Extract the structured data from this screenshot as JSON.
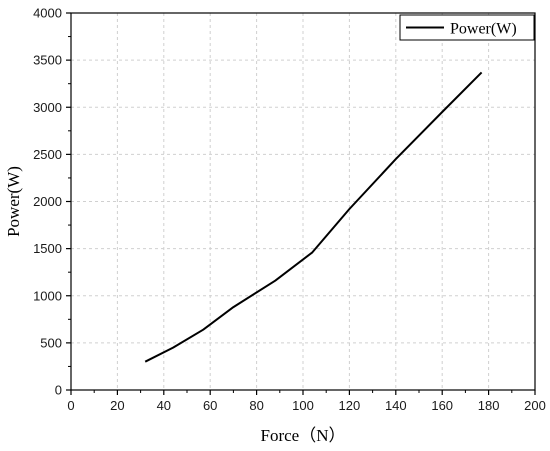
{
  "chart_data": {
    "type": "line",
    "title": "",
    "xlabel": "Force（N）",
    "ylabel": "Power(W)",
    "xlim": [
      0,
      200
    ],
    "ylim": [
      0,
      4000
    ],
    "xticks": [
      0,
      20,
      40,
      60,
      80,
      100,
      120,
      140,
      160,
      180,
      200
    ],
    "yticks": [
      0,
      500,
      1000,
      1500,
      2000,
      2500,
      3000,
      3500,
      4000
    ],
    "grid": true,
    "legend_position": "top-right",
    "series": [
      {
        "name": "Power(W)",
        "color": "#000000",
        "x": [
          32,
          44,
          57,
          70,
          88,
          104,
          120,
          140,
          160,
          177
        ],
        "y": [
          300,
          450,
          640,
          880,
          1160,
          1460,
          1920,
          2450,
          2950,
          3370
        ]
      }
    ]
  }
}
